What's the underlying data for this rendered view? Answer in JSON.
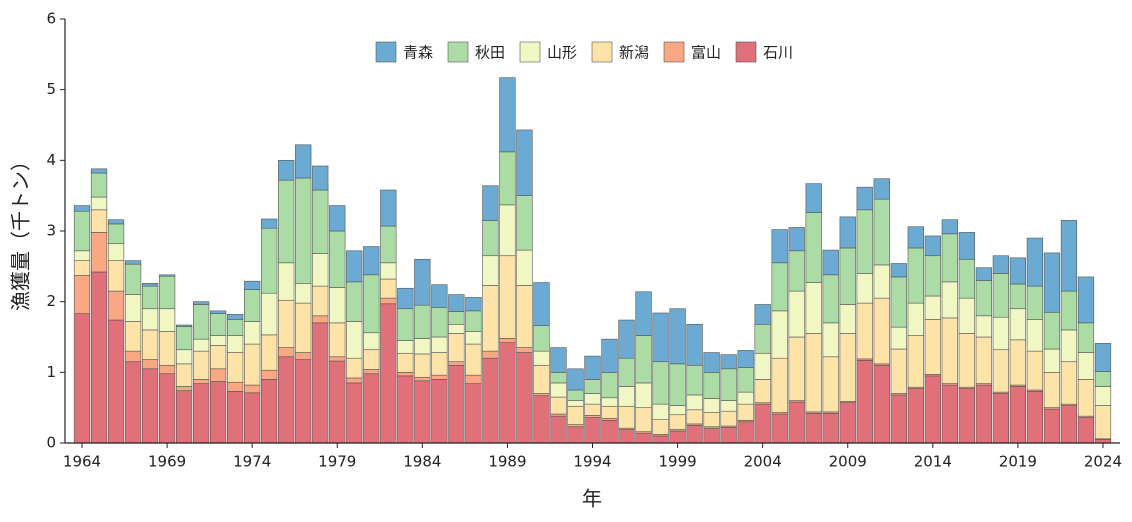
{
  "chart_data": {
    "type": "stacked_bar",
    "x_label": "年",
    "y_label": "漁獲量（千トン）",
    "x": [
      1964,
      1965,
      1966,
      1967,
      1968,
      1969,
      1970,
      1971,
      1972,
      1973,
      1974,
      1975,
      1976,
      1977,
      1978,
      1979,
      1980,
      1981,
      1982,
      1983,
      1984,
      1985,
      1986,
      1987,
      1988,
      1989,
      1990,
      1991,
      1992,
      1993,
      1994,
      1995,
      1996,
      1997,
      1998,
      1999,
      2000,
      2001,
      2002,
      2003,
      2004,
      2005,
      2006,
      2007,
      2008,
      2009,
      2010,
      2011,
      2012,
      2013,
      2014,
      2015,
      2016,
      2017,
      2018,
      2019,
      2020,
      2021,
      2022,
      2023,
      2024
    ],
    "xlim": [
      1963,
      2025
    ],
    "xticks": [
      1964,
      1969,
      1974,
      1979,
      1984,
      1989,
      1994,
      1999,
      2004,
      2009,
      2014,
      2019,
      2024
    ],
    "ylim": [
      0,
      6
    ],
    "yticks": [
      0,
      1,
      2,
      3,
      4,
      5,
      6
    ],
    "legend": "top",
    "series": [
      {
        "name": "石川",
        "color": "#e0707a",
        "values": [
          1.83,
          2.42,
          1.74,
          1.15,
          1.05,
          0.98,
          0.74,
          0.84,
          0.87,
          0.73,
          0.71,
          0.9,
          1.22,
          1.18,
          1.7,
          1.16,
          0.85,
          0.98,
          1.97,
          0.95,
          0.88,
          0.9,
          1.1,
          0.84,
          1.2,
          1.42,
          1.28,
          0.67,
          0.38,
          0.23,
          0.36,
          0.32,
          0.19,
          0.14,
          0.1,
          0.17,
          0.25,
          0.21,
          0.22,
          0.3,
          0.55,
          0.41,
          0.58,
          0.42,
          0.42,
          0.57,
          1.17,
          1.1,
          0.68,
          0.77,
          0.95,
          0.82,
          0.77,
          0.82,
          0.7,
          0.8,
          0.73,
          0.48,
          0.53,
          0.36,
          0.05
        ]
      },
      {
        "name": "富山",
        "color": "#f9a883",
        "values": [
          0.54,
          0.56,
          0.41,
          0.15,
          0.13,
          0.12,
          0.06,
          0.06,
          0.18,
          0.13,
          0.11,
          0.13,
          0.13,
          0.1,
          0.1,
          0.06,
          0.07,
          0.06,
          0.08,
          0.05,
          0.05,
          0.06,
          0.05,
          0.12,
          0.1,
          0.06,
          0.07,
          0.03,
          0.03,
          0.03,
          0.03,
          0.03,
          0.02,
          0.02,
          0.02,
          0.02,
          0.02,
          0.02,
          0.02,
          0.02,
          0.02,
          0.02,
          0.02,
          0.02,
          0.02,
          0.02,
          0.02,
          0.02,
          0.02,
          0.02,
          0.02,
          0.02,
          0.02,
          0.02,
          0.02,
          0.02,
          0.02,
          0.02,
          0.02,
          0.02,
          0.01
        ]
      },
      {
        "name": "新潟",
        "color": "#fde3a7",
        "values": [
          0.21,
          0.32,
          0.43,
          0.42,
          0.42,
          0.48,
          0.32,
          0.4,
          0.33,
          0.42,
          0.58,
          0.5,
          0.67,
          0.7,
          0.42,
          0.48,
          0.28,
          0.28,
          0.27,
          0.27,
          0.33,
          0.32,
          0.4,
          0.44,
          0.93,
          1.17,
          0.88,
          0.4,
          0.24,
          0.26,
          0.16,
          0.17,
          0.31,
          0.34,
          0.21,
          0.21,
          0.2,
          0.2,
          0.21,
          0.23,
          0.33,
          0.77,
          0.9,
          1.11,
          0.78,
          0.96,
          0.79,
          0.93,
          0.63,
          0.73,
          0.78,
          0.93,
          0.76,
          0.66,
          0.6,
          0.64,
          0.55,
          0.5,
          0.6,
          0.52,
          0.47
        ]
      },
      {
        "name": "山形",
        "color": "#f1f7c2",
        "values": [
          0.14,
          0.18,
          0.24,
          0.38,
          0.3,
          0.32,
          0.2,
          0.17,
          0.14,
          0.24,
          0.32,
          0.59,
          0.53,
          0.28,
          0.46,
          0.5,
          0.52,
          0.24,
          0.23,
          0.18,
          0.22,
          0.22,
          0.13,
          0.18,
          0.42,
          0.72,
          0.5,
          0.2,
          0.2,
          0.08,
          0.15,
          0.12,
          0.28,
          0.35,
          0.22,
          0.13,
          0.21,
          0.2,
          0.15,
          0.17,
          0.37,
          0.67,
          0.65,
          0.72,
          0.48,
          0.41,
          0.42,
          0.47,
          0.31,
          0.46,
          0.33,
          0.51,
          0.5,
          0.3,
          0.46,
          0.44,
          0.45,
          0.33,
          0.45,
          0.38,
          0.27
        ]
      },
      {
        "name": "秋田",
        "color": "#acdca6",
        "values": [
          0.56,
          0.34,
          0.28,
          0.43,
          0.32,
          0.46,
          0.33,
          0.49,
          0.31,
          0.23,
          0.45,
          0.92,
          1.17,
          1.49,
          0.9,
          0.8,
          0.56,
          0.82,
          0.52,
          0.45,
          0.47,
          0.42,
          0.18,
          0.29,
          0.5,
          0.75,
          0.77,
          0.36,
          0.15,
          0.15,
          0.2,
          0.36,
          0.4,
          0.67,
          0.6,
          0.59,
          0.42,
          0.37,
          0.45,
          0.35,
          0.41,
          0.68,
          0.57,
          0.99,
          0.68,
          0.8,
          0.9,
          0.93,
          0.71,
          0.78,
          0.57,
          0.68,
          0.55,
          0.5,
          0.62,
          0.35,
          0.47,
          0.52,
          0.55,
          0.42,
          0.21
        ]
      },
      {
        "name": "青森",
        "color": "#6aaad3",
        "values": [
          0.08,
          0.06,
          0.06,
          0.05,
          0.04,
          0.02,
          0.02,
          0.04,
          0.04,
          0.07,
          0.12,
          0.13,
          0.28,
          0.47,
          0.34,
          0.36,
          0.44,
          0.4,
          0.51,
          0.29,
          0.65,
          0.32,
          0.24,
          0.19,
          0.49,
          1.05,
          0.93,
          0.61,
          0.35,
          0.3,
          0.33,
          0.47,
          0.54,
          0.62,
          0.69,
          0.78,
          0.58,
          0.28,
          0.2,
          0.24,
          0.28,
          0.47,
          0.33,
          0.41,
          0.35,
          0.44,
          0.32,
          0.29,
          0.19,
          0.3,
          0.28,
          0.2,
          0.38,
          0.18,
          0.25,
          0.37,
          0.68,
          0.84,
          1.0,
          0.65,
          0.4
        ]
      }
    ]
  }
}
